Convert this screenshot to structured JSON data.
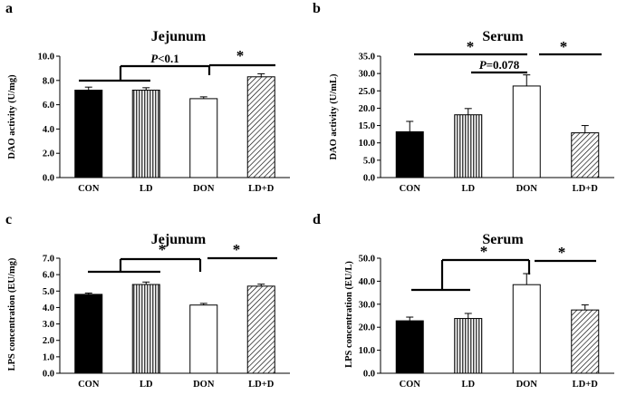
{
  "colors": {
    "axis": "#000000",
    "hatch_stroke": "#000000",
    "bar_black": "#000000",
    "bar_white": "#ffffff"
  },
  "chart_data": [
    {
      "type": "bar",
      "panel_label": "a",
      "title": "Jejunum",
      "xlabel": "",
      "ylabel": "DAO activity (U/mg)",
      "categories": [
        "CON",
        "LD",
        "DON",
        "LD+D"
      ],
      "values": [
        7.2,
        7.2,
        6.5,
        8.3
      ],
      "errors": [
        0.25,
        0.2,
        0.15,
        0.25
      ],
      "bar_fills": [
        "solid-black",
        "vertical-stripes",
        "white",
        "diagonal-stripes"
      ],
      "ylim": [
        0,
        10
      ],
      "yticks": [
        "0.0",
        "2.0",
        "4.0",
        "6.0",
        "8.0",
        "10.0"
      ],
      "annotations": [
        {
          "label_italic": "P",
          "label_rest": "<0.1",
          "kind": "bracket-group-CON-LD-vs-DON"
        },
        {
          "label_italic": "",
          "label_rest": "*",
          "kind": "line-DON-vs-LD+D"
        }
      ]
    },
    {
      "type": "bar",
      "panel_label": "b",
      "title": "Serum",
      "xlabel": "",
      "ylabel": "DAO activity (U/mL)",
      "categories": [
        "CON",
        "LD",
        "DON",
        "LD+D"
      ],
      "values": [
        13.2,
        18.1,
        26.4,
        12.9
      ],
      "errors": [
        3.0,
        1.8,
        3.2,
        2.1
      ],
      "bar_fills": [
        "solid-black",
        "vertical-stripes",
        "white",
        "diagonal-stripes"
      ],
      "ylim": [
        0,
        35
      ],
      "yticks": [
        "0.0",
        "5.0",
        "10.0",
        "15.0",
        "20.0",
        "25.0",
        "30.0",
        "35.0"
      ],
      "annotations": [
        {
          "label_italic": "",
          "label_rest": "*",
          "kind": "line-CON-vs-DON"
        },
        {
          "label_italic": "P",
          "label_rest": "=0.078",
          "kind": "line-LD-vs-DON"
        },
        {
          "label_italic": "",
          "label_rest": "*",
          "kind": "line-DON-vs-LD+D"
        }
      ]
    },
    {
      "type": "bar",
      "panel_label": "c",
      "title": "Jejunum",
      "xlabel": "",
      "ylabel": "LPS concentration (EU/mg)",
      "categories": [
        "CON",
        "LD",
        "DON",
        "LD+D"
      ],
      "values": [
        4.8,
        5.4,
        4.15,
        5.3
      ],
      "errors": [
        0.08,
        0.15,
        0.1,
        0.12
      ],
      "bar_fills": [
        "solid-black",
        "vertical-stripes",
        "white",
        "diagonal-stripes"
      ],
      "ylim": [
        0,
        7
      ],
      "yticks": [
        "0.0",
        "1.0",
        "2.0",
        "3.0",
        "4.0",
        "5.0",
        "6.0",
        "7.0"
      ],
      "annotations": [
        {
          "label_italic": "",
          "label_rest": "*",
          "kind": "bracket-group-CON-LD-vs-DON"
        },
        {
          "label_italic": "",
          "label_rest": "*",
          "kind": "line-DON-vs-LD+D"
        }
      ]
    },
    {
      "type": "bar",
      "panel_label": "d",
      "title": "Serum",
      "xlabel": "",
      "ylabel": "LPS concentration (EU/L)",
      "categories": [
        "CON",
        "LD",
        "DON",
        "LD+D"
      ],
      "values": [
        22.8,
        23.8,
        38.5,
        27.5
      ],
      "errors": [
        1.6,
        2.2,
        4.8,
        2.2
      ],
      "bar_fills": [
        "solid-black",
        "vertical-stripes",
        "white",
        "diagonal-stripes"
      ],
      "ylim": [
        0,
        50
      ],
      "yticks": [
        "0.0",
        "10.0",
        "20.0",
        "30.0",
        "40.0",
        "50.0"
      ],
      "annotations": [
        {
          "label_italic": "",
          "label_rest": "*",
          "kind": "bracket-group-CON-LD-vs-DON"
        },
        {
          "label_italic": "",
          "label_rest": "*",
          "kind": "line-DON-vs-LD+D"
        }
      ]
    }
  ]
}
